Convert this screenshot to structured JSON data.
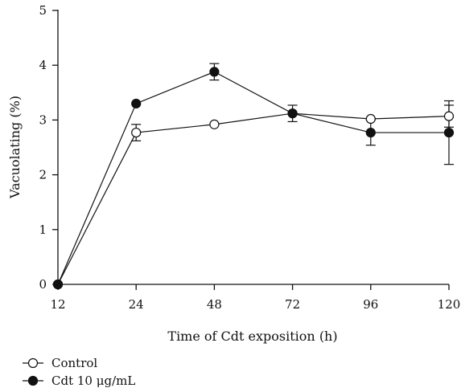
{
  "chart_data": {
    "type": "line",
    "title": "",
    "xlabel": "Time of Cdt exposition (h)",
    "ylabel": "Vacuolating (%)",
    "categories": [
      "12",
      "24",
      "48",
      "72",
      "96",
      "120"
    ],
    "ylim": [
      0,
      5
    ],
    "yticks": [
      "0",
      "1",
      "2",
      "3",
      "4",
      "5"
    ],
    "grid": false,
    "legend_position": "bottom-left",
    "series": [
      {
        "name": "Control",
        "marker": "open-circle",
        "values": [
          0,
          2.77,
          2.92,
          3.12,
          3.02,
          3.07
        ],
        "error": [
          0,
          0.15,
          0,
          0.15,
          0,
          0.2
        ]
      },
      {
        "name": "Cdt 10 μg/mL",
        "marker": "filled-circle",
        "values": [
          0,
          3.3,
          3.88,
          3.12,
          2.77,
          2.77
        ],
        "error": [
          0,
          0,
          0.15,
          0,
          0.23,
          0.58
        ]
      }
    ]
  }
}
